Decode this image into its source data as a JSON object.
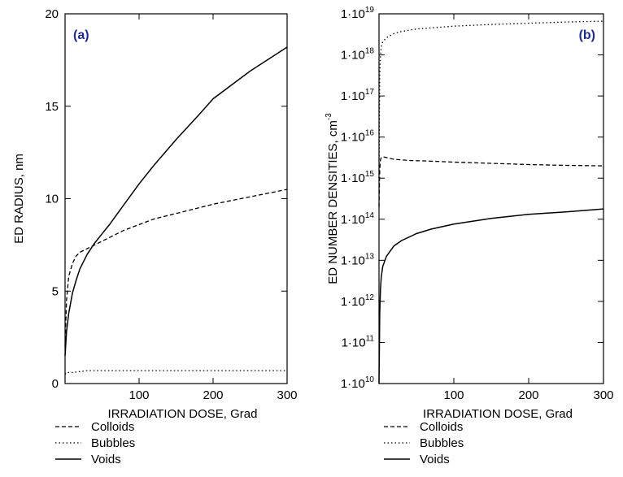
{
  "chart_data": [
    {
      "type": "line",
      "panel_label": "(a)",
      "xlabel": "IRRADIATION DOSE, Grad",
      "ylabel": "ED RADIUS, nm",
      "xlim": [
        0,
        300
      ],
      "ylim": [
        0,
        20
      ],
      "x_ticks": [
        100,
        200,
        300
      ],
      "x_tick_labels": [
        "100",
        "200",
        "300"
      ],
      "y_ticks": [
        0,
        5,
        10,
        15,
        20
      ],
      "y_tick_labels": [
        "0",
        "5",
        "10",
        "15",
        "20"
      ],
      "y_scale": "linear",
      "legend_position": "below",
      "series": [
        {
          "name": "Colloids",
          "style": "dashed",
          "x": [
            0,
            2,
            5,
            10,
            15,
            20,
            30,
            40,
            50,
            60,
            80,
            100,
            120,
            150,
            180,
            200,
            250,
            300
          ],
          "y": [
            2.0,
            4.5,
            5.8,
            6.5,
            6.9,
            7.1,
            7.3,
            7.5,
            7.7,
            7.9,
            8.3,
            8.6,
            8.9,
            9.2,
            9.5,
            9.7,
            10.1,
            10.5
          ]
        },
        {
          "name": "Bubbles",
          "style": "dotted",
          "x": [
            0,
            2,
            5,
            10,
            20,
            30,
            50,
            100,
            150,
            200,
            250,
            300
          ],
          "y": [
            0.5,
            0.6,
            0.6,
            0.6,
            0.65,
            0.7,
            0.7,
            0.7,
            0.7,
            0.7,
            0.7,
            0.7
          ]
        },
        {
          "name": "Voids",
          "style": "solid",
          "x": [
            0,
            2,
            5,
            10,
            15,
            20,
            30,
            40,
            50,
            60,
            80,
            100,
            120,
            150,
            180,
            200,
            250,
            300
          ],
          "y": [
            1.5,
            2.8,
            3.8,
            4.9,
            5.6,
            6.2,
            7.0,
            7.6,
            8.1,
            8.6,
            9.7,
            10.8,
            11.8,
            13.2,
            14.5,
            15.4,
            16.9,
            18.2
          ]
        }
      ]
    },
    {
      "type": "line",
      "panel_label": "(b)",
      "xlabel": "IRRADIATION DOSE, Grad",
      "ylabel": "ED NUMBER DENSITIES, cm",
      "ylabel_superscript": "-3",
      "xlim": [
        0,
        300
      ],
      "ylim": [
        10,
        19
      ],
      "y_scale": "log",
      "x_ticks": [
        100,
        200,
        300
      ],
      "x_tick_labels": [
        "100",
        "200",
        "300"
      ],
      "y_tick_mantissa": "1·10",
      "y_tick_exponents": [
        "10",
        "11",
        "12",
        "13",
        "14",
        "15",
        "16",
        "17",
        "18",
        "19"
      ],
      "legend_position": "below",
      "series": [
        {
          "name": "Colloids",
          "style": "dashed",
          "x": [
            0,
            0.5,
            1,
            2,
            3,
            5,
            10,
            20,
            40,
            60,
            100,
            150,
            200,
            250,
            300
          ],
          "y_log10": [
            14.3,
            14.8,
            15.2,
            15.45,
            15.5,
            15.52,
            15.5,
            15.46,
            15.43,
            15.42,
            15.39,
            15.36,
            15.33,
            15.31,
            15.3
          ]
        },
        {
          "name": "Bubbles",
          "style": "dotted",
          "x": [
            0,
            0.5,
            1,
            2,
            3,
            5,
            10,
            20,
            30,
            50,
            100,
            150,
            200,
            250,
            300
          ],
          "y_log10": [
            15.0,
            16.5,
            17.5,
            18.0,
            18.2,
            18.32,
            18.42,
            18.52,
            18.57,
            18.63,
            18.7,
            18.74,
            18.77,
            18.8,
            18.82
          ]
        },
        {
          "name": "Voids",
          "style": "solid",
          "x": [
            0,
            1,
            2,
            3,
            5,
            10,
            20,
            30,
            50,
            70,
            100,
            150,
            200,
            250,
            300
          ],
          "y_log10": [
            10.0,
            11.7,
            12.3,
            12.6,
            12.85,
            13.1,
            13.35,
            13.48,
            13.65,
            13.76,
            13.88,
            14.02,
            14.12,
            14.18,
            14.25
          ]
        }
      ]
    }
  ]
}
